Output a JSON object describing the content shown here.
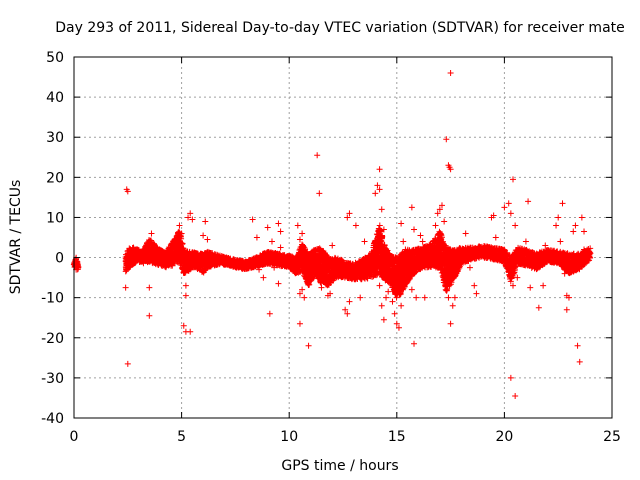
{
  "chart_data": {
    "type": "scatter",
    "title": "Day 293 of 2011, Sidereal Day-to-day VTEC variation (SDTVAR) for receiver mate",
    "xlabel": "GPS time / hours",
    "ylabel": "SDTVAR / TECUs",
    "xlim": [
      0,
      25
    ],
    "ylim": [
      -40,
      50
    ],
    "xticks": [
      0,
      5,
      10,
      15,
      20,
      25
    ],
    "yticks": [
      -40,
      -30,
      -20,
      -10,
      0,
      10,
      20,
      30,
      40,
      50
    ],
    "grid": true,
    "marker": "plus",
    "color": "#ff0000",
    "band_note": "dense band of points approximating the continuous trace",
    "band": [
      [
        0.0,
        -2.0,
        0.8
      ],
      [
        0.1,
        -1.0,
        1.0
      ],
      [
        0.2,
        -2.5,
        1.0
      ],
      [
        2.4,
        -1.5,
        2.0
      ],
      [
        2.5,
        -0.5,
        2.5
      ],
      [
        2.6,
        0.0,
        2.5
      ],
      [
        2.8,
        0.5,
        2.0
      ],
      [
        3.0,
        0.5,
        1.5
      ],
      [
        3.2,
        0.0,
        1.5
      ],
      [
        3.5,
        2.0,
        3.0
      ],
      [
        3.7,
        1.0,
        2.5
      ],
      [
        4.0,
        0.0,
        2.0
      ],
      [
        4.3,
        -0.5,
        2.0
      ],
      [
        4.6,
        1.0,
        3.0
      ],
      [
        4.9,
        3.0,
        4.0
      ],
      [
        5.1,
        -1.0,
        3.0
      ],
      [
        5.3,
        -1.0,
        2.5
      ],
      [
        5.5,
        -0.5,
        2.0
      ],
      [
        5.8,
        -1.0,
        2.0
      ],
      [
        6.0,
        -1.5,
        2.5
      ],
      [
        6.2,
        -0.5,
        2.0
      ],
      [
        6.5,
        -0.5,
        1.5
      ],
      [
        7.0,
        -0.8,
        1.0
      ],
      [
        7.5,
        -1.5,
        1.0
      ],
      [
        8.0,
        -2.0,
        1.0
      ],
      [
        8.5,
        -1.0,
        1.2
      ],
      [
        9.0,
        0.0,
        1.5
      ],
      [
        9.5,
        -0.5,
        1.5
      ],
      [
        10.0,
        -1.0,
        1.5
      ],
      [
        10.3,
        -2.0,
        2.0
      ],
      [
        10.6,
        0.0,
        3.5
      ],
      [
        10.9,
        -3.0,
        4.0
      ],
      [
        11.2,
        -1.0,
        3.0
      ],
      [
        11.5,
        -2.0,
        4.5
      ],
      [
        11.8,
        -3.5,
        3.5
      ],
      [
        12.2,
        -2.5,
        2.5
      ],
      [
        12.6,
        -3.0,
        2.0
      ],
      [
        13.0,
        -3.5,
        2.0
      ],
      [
        13.4,
        -3.0,
        2.5
      ],
      [
        13.8,
        -2.0,
        3.0
      ],
      [
        14.2,
        2.0,
        6.0
      ],
      [
        14.4,
        -1.0,
        4.5
      ],
      [
        14.7,
        -3.0,
        3.5
      ],
      [
        15.0,
        -5.0,
        5.0
      ],
      [
        15.2,
        -4.0,
        5.0
      ],
      [
        15.5,
        -2.0,
        4.0
      ],
      [
        15.8,
        -1.0,
        3.0
      ],
      [
        16.2,
        0.0,
        2.5
      ],
      [
        16.6,
        0.5,
        3.0
      ],
      [
        17.0,
        2.0,
        4.5
      ],
      [
        17.3,
        -3.0,
        5.5
      ],
      [
        17.6,
        -2.0,
        4.0
      ],
      [
        18.0,
        0.5,
        2.0
      ],
      [
        18.5,
        1.0,
        1.5
      ],
      [
        19.0,
        1.5,
        1.5
      ],
      [
        19.5,
        1.0,
        1.5
      ],
      [
        20.0,
        0.5,
        1.5
      ],
      [
        20.3,
        -3.0,
        3.0
      ],
      [
        20.6,
        0.5,
        2.0
      ],
      [
        21.0,
        0.0,
        2.0
      ],
      [
        21.5,
        -1.0,
        2.0
      ],
      [
        22.0,
        0.5,
        1.5
      ],
      [
        22.5,
        0.0,
        1.5
      ],
      [
        23.0,
        -1.5,
        2.5
      ],
      [
        23.5,
        -1.0,
        2.0
      ],
      [
        24.0,
        1.0,
        1.5
      ]
    ],
    "points": [
      [
        0.05,
        -2.0
      ],
      [
        0.1,
        -3.0
      ],
      [
        0.15,
        -1.0
      ],
      [
        0.2,
        -2.5
      ],
      [
        2.45,
        17.0
      ],
      [
        2.5,
        16.5
      ],
      [
        2.5,
        -26.5
      ],
      [
        2.4,
        -7.5
      ],
      [
        3.5,
        -14.5
      ],
      [
        3.5,
        -7.5
      ],
      [
        3.3,
        1.0
      ],
      [
        3.6,
        6.0
      ],
      [
        4.5,
        1.0
      ],
      [
        4.8,
        3.0
      ],
      [
        4.9,
        8.0
      ],
      [
        5.0,
        6.0
      ],
      [
        5.1,
        -17.0
      ],
      [
        5.2,
        -18.5
      ],
      [
        5.4,
        -18.5
      ],
      [
        5.3,
        10.0
      ],
      [
        5.4,
        11.0
      ],
      [
        5.5,
        9.5
      ],
      [
        5.2,
        -7.0
      ],
      [
        5.2,
        -9.5
      ],
      [
        5.1,
        -3.0
      ],
      [
        6.1,
        9.0
      ],
      [
        6.0,
        5.5
      ],
      [
        6.2,
        4.5
      ],
      [
        8.3,
        9.5
      ],
      [
        8.5,
        5.0
      ],
      [
        8.6,
        -3.0
      ],
      [
        8.8,
        -5.0
      ],
      [
        9.0,
        7.5
      ],
      [
        9.2,
        4.0
      ],
      [
        9.1,
        -14.0
      ],
      [
        9.5,
        -6.5
      ],
      [
        9.3,
        -2.5
      ],
      [
        9.5,
        8.5
      ],
      [
        9.6,
        6.5
      ],
      [
        9.6,
        2.5
      ],
      [
        10.4,
        8.0
      ],
      [
        10.5,
        4.5
      ],
      [
        10.6,
        6.0
      ],
      [
        10.5,
        -9.0
      ],
      [
        10.6,
        -8.0
      ],
      [
        10.7,
        -10.0
      ],
      [
        10.5,
        -16.5
      ],
      [
        10.9,
        -22.0
      ],
      [
        11.3,
        25.5
      ],
      [
        11.4,
        16.0
      ],
      [
        11.5,
        -7.5
      ],
      [
        11.8,
        -9.5
      ],
      [
        11.9,
        -9.0
      ],
      [
        12.0,
        3.0
      ],
      [
        12.7,
        10.0
      ],
      [
        12.8,
        11.0
      ],
      [
        12.6,
        -13.0
      ],
      [
        12.7,
        -14.0
      ],
      [
        12.8,
        -11.0
      ],
      [
        13.1,
        8.0
      ],
      [
        13.3,
        -10.0
      ],
      [
        13.5,
        4.0
      ],
      [
        14.0,
        16.0
      ],
      [
        14.1,
        18.0
      ],
      [
        14.2,
        22.0
      ],
      [
        14.2,
        17.0
      ],
      [
        14.3,
        12.0
      ],
      [
        14.4,
        7.0
      ],
      [
        14.5,
        2.0
      ],
      [
        14.2,
        -7.0
      ],
      [
        14.3,
        -12.0
      ],
      [
        14.4,
        -15.5
      ],
      [
        14.5,
        -10.0
      ],
      [
        14.6,
        -8.5
      ],
      [
        14.7,
        -5.0
      ],
      [
        14.8,
        -11.0
      ],
      [
        14.9,
        -14.0
      ],
      [
        15.0,
        -16.5
      ],
      [
        15.1,
        -17.5
      ],
      [
        15.2,
        -12.0
      ],
      [
        15.3,
        4.0
      ],
      [
        15.4,
        2.0
      ],
      [
        15.2,
        8.5
      ],
      [
        15.7,
        12.5
      ],
      [
        15.8,
        7.0
      ],
      [
        15.7,
        -8.0
      ],
      [
        15.8,
        -21.5
      ],
      [
        15.9,
        -10.0
      ],
      [
        16.1,
        5.5
      ],
      [
        16.2,
        4.0
      ],
      [
        16.3,
        -10.0
      ],
      [
        16.8,
        8.0
      ],
      [
        16.9,
        11.0
      ],
      [
        17.0,
        12.0
      ],
      [
        17.1,
        13.0
      ],
      [
        17.2,
        9.0
      ],
      [
        17.3,
        29.5
      ],
      [
        17.4,
        23.0
      ],
      [
        17.45,
        22.5
      ],
      [
        17.5,
        22.0
      ],
      [
        17.5,
        46.0
      ],
      [
        17.4,
        -10.0
      ],
      [
        17.5,
        -16.5
      ],
      [
        17.6,
        -12.0
      ],
      [
        17.7,
        -10.0
      ],
      [
        18.2,
        6.0
      ],
      [
        18.4,
        -2.5
      ],
      [
        18.6,
        -7.0
      ],
      [
        18.7,
        -9.0
      ],
      [
        18.8,
        2.5
      ],
      [
        19.4,
        10.0
      ],
      [
        19.5,
        10.5
      ],
      [
        19.6,
        5.0
      ],
      [
        20.0,
        12.5
      ],
      [
        20.2,
        13.5
      ],
      [
        20.3,
        11.0
      ],
      [
        20.4,
        19.5
      ],
      [
        20.5,
        8.0
      ],
      [
        20.3,
        -30.0
      ],
      [
        20.4,
        -7.0
      ],
      [
        20.5,
        -34.5
      ],
      [
        20.6,
        -5.0
      ],
      [
        21.0,
        4.0
      ],
      [
        21.1,
        14.0
      ],
      [
        21.2,
        -7.5
      ],
      [
        21.6,
        -12.5
      ],
      [
        21.8,
        -7.0
      ],
      [
        21.9,
        3.0
      ],
      [
        22.4,
        8.0
      ],
      [
        22.5,
        10.0
      ],
      [
        22.6,
        4.0
      ],
      [
        22.7,
        13.5
      ],
      [
        22.8,
        -4.0
      ],
      [
        22.9,
        -9.5
      ],
      [
        22.9,
        -13.0
      ],
      [
        23.0,
        -10.0
      ],
      [
        23.2,
        6.5
      ],
      [
        23.3,
        8.0
      ],
      [
        23.4,
        -22.0
      ],
      [
        23.5,
        -26.0
      ],
      [
        23.6,
        10.0
      ],
      [
        23.7,
        6.5
      ],
      [
        23.7,
        2.0
      ],
      [
        23.8,
        1.0
      ]
    ]
  }
}
